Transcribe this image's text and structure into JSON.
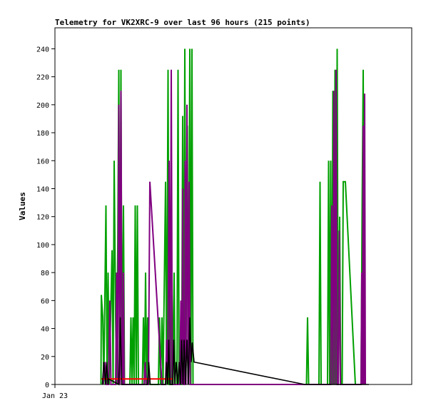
{
  "chart_data": {
    "type": "line",
    "title": "Telemetry for VK2XRC-9 over last 96 hours (215 points)",
    "xlabel": "",
    "ylabel": "Values",
    "ylim": [
      0,
      255
    ],
    "xlim": [
      0,
      100
    ],
    "x_tick_labels": [
      {
        "x": 0,
        "label": "Jan 23"
      }
    ],
    "y_ticks": [
      0,
      20,
      40,
      60,
      80,
      100,
      120,
      140,
      160,
      180,
      200,
      220,
      240
    ],
    "grid": false,
    "legend": "none",
    "series": [
      {
        "color": "#00a000",
        "points": [
          [
            12.9,
            0
          ],
          [
            13.0,
            64
          ],
          [
            13.4,
            48
          ],
          [
            13.7,
            0
          ],
          [
            14.0,
            64
          ],
          [
            14.3,
            128
          ],
          [
            14.6,
            0
          ],
          [
            14.9,
            80
          ],
          [
            15.2,
            0
          ],
          [
            16.0,
            96
          ],
          [
            16.3,
            0
          ],
          [
            16.6,
            160
          ],
          [
            17.0,
            48
          ],
          [
            17.3,
            0
          ],
          [
            17.6,
            96
          ],
          [
            17.9,
            225
          ],
          [
            18.2,
            0
          ],
          [
            18.5,
            225
          ],
          [
            18.8,
            0
          ],
          [
            19.2,
            128
          ],
          [
            19.5,
            0
          ],
          [
            21.0,
            0
          ],
          [
            21.3,
            48
          ],
          [
            21.6,
            0
          ],
          [
            21.9,
            48
          ],
          [
            22.2,
            0
          ],
          [
            22.5,
            128
          ],
          [
            22.8,
            0
          ],
          [
            23.1,
            128
          ],
          [
            23.4,
            0
          ],
          [
            24.5,
            0
          ],
          [
            24.8,
            48
          ],
          [
            25.1,
            0
          ],
          [
            25.4,
            80
          ],
          [
            25.7,
            0
          ],
          [
            26.0,
            48
          ],
          [
            26.3,
            0
          ],
          [
            29.0,
            0
          ],
          [
            29.3,
            48
          ],
          [
            29.6,
            0
          ],
          [
            30.0,
            48
          ],
          [
            30.3,
            0
          ],
          [
            31.0,
            145
          ],
          [
            31.3,
            0
          ],
          [
            31.7,
            225
          ],
          [
            32.0,
            0
          ],
          [
            32.5,
            0
          ],
          [
            32.8,
            64
          ],
          [
            33.1,
            0
          ],
          [
            33.4,
            80
          ],
          [
            33.7,
            0
          ],
          [
            34.2,
            0
          ],
          [
            34.5,
            225
          ],
          [
            34.8,
            0
          ],
          [
            35.5,
            0
          ],
          [
            35.8,
            192
          ],
          [
            36.1,
            0
          ],
          [
            36.4,
            240
          ],
          [
            36.7,
            0
          ],
          [
            37.1,
            185
          ],
          [
            37.4,
            0
          ],
          [
            37.8,
            240
          ],
          [
            38.1,
            0
          ],
          [
            38.4,
            240
          ],
          [
            38.7,
            0
          ],
          [
            39.5,
            0
          ],
          [
            39.8,
            0
          ],
          [
            70.5,
            0
          ],
          [
            70.8,
            48
          ],
          [
            71.1,
            0
          ],
          [
            71.4,
            0
          ],
          [
            74.0,
            0
          ],
          [
            74.3,
            145
          ],
          [
            74.6,
            0
          ],
          [
            76.4,
            0
          ],
          [
            76.7,
            160
          ],
          [
            77.0,
            0
          ],
          [
            77.3,
            160
          ],
          [
            77.6,
            0
          ],
          [
            77.9,
            210
          ],
          [
            78.2,
            0
          ],
          [
            78.5,
            225
          ],
          [
            78.8,
            0
          ],
          [
            79.1,
            240
          ],
          [
            79.4,
            0
          ],
          [
            79.8,
            120
          ],
          [
            80.1,
            0
          ],
          [
            80.5,
            0
          ],
          [
            80.8,
            145
          ],
          [
            81.4,
            145
          ],
          [
            84.2,
            0
          ],
          [
            85.8,
            0
          ],
          [
            86.1,
            128
          ],
          [
            86.4,
            225
          ],
          [
            86.7,
            0
          ]
        ]
      },
      {
        "color": "#800080",
        "points": [
          [
            13.5,
            0
          ],
          [
            14.0,
            16
          ],
          [
            14.4,
            0
          ],
          [
            15.0,
            0
          ],
          [
            15.4,
            60
          ],
          [
            15.7,
            0
          ],
          [
            17.0,
            0
          ],
          [
            17.3,
            80
          ],
          [
            17.6,
            0
          ],
          [
            17.9,
            200
          ],
          [
            18.2,
            0
          ],
          [
            18.5,
            210
          ],
          [
            18.8,
            0
          ],
          [
            19.1,
            0
          ],
          [
            19.2,
            80
          ],
          [
            19.4,
            0
          ],
          [
            25.0,
            0
          ],
          [
            25.3,
            16
          ],
          [
            25.6,
            0
          ],
          [
            26.2,
            0
          ],
          [
            26.6,
            145
          ],
          [
            27.0,
            128
          ],
          [
            30.0,
            0
          ],
          [
            31.0,
            0
          ],
          [
            31.3,
            32
          ],
          [
            31.6,
            0
          ],
          [
            32.0,
            160
          ],
          [
            32.3,
            0
          ],
          [
            32.6,
            225
          ],
          [
            32.9,
            0
          ],
          [
            35.0,
            0
          ],
          [
            35.3,
            60
          ],
          [
            35.6,
            0
          ],
          [
            35.8,
            140
          ],
          [
            36.1,
            0
          ],
          [
            36.4,
            0
          ],
          [
            36.5,
            160
          ],
          [
            36.7,
            0
          ],
          [
            37.0,
            200
          ],
          [
            37.3,
            0
          ],
          [
            37.6,
            145
          ],
          [
            37.9,
            0
          ],
          [
            38.2,
            0
          ],
          [
            38.6,
            0
          ],
          [
            77.3,
            0
          ],
          [
            77.6,
            128
          ],
          [
            77.9,
            0
          ],
          [
            78.2,
            210
          ],
          [
            78.5,
            0
          ],
          [
            78.8,
            225
          ],
          [
            79.1,
            0
          ],
          [
            79.4,
            0
          ],
          [
            79.7,
            110
          ],
          [
            80.0,
            0
          ],
          [
            85.8,
            0
          ],
          [
            86.0,
            80
          ],
          [
            86.2,
            0
          ],
          [
            86.4,
            185
          ],
          [
            86.6,
            0
          ],
          [
            86.8,
            208
          ],
          [
            87.0,
            0
          ]
        ]
      },
      {
        "color": "#ff0000",
        "points": [
          [
            13.0,
            4
          ],
          [
            33.0,
            4
          ]
        ]
      },
      {
        "color": "#000000",
        "points": [
          [
            13.3,
            0
          ],
          [
            13.7,
            16
          ],
          [
            14.2,
            0
          ],
          [
            14.5,
            16
          ],
          [
            14.9,
            0
          ],
          [
            15.0,
            4
          ],
          [
            17.9,
            0
          ],
          [
            18.3,
            48
          ],
          [
            18.7,
            0
          ],
          [
            19.0,
            0
          ],
          [
            26.0,
            0
          ],
          [
            26.3,
            16
          ],
          [
            26.7,
            0
          ],
          [
            27.0,
            0
          ],
          [
            31.0,
            0
          ],
          [
            31.3,
            16
          ],
          [
            31.6,
            0
          ],
          [
            31.9,
            32
          ],
          [
            32.2,
            0
          ],
          [
            33.0,
            0
          ],
          [
            33.3,
            32
          ],
          [
            33.6,
            0
          ],
          [
            34.0,
            16
          ],
          [
            34.4,
            0
          ],
          [
            34.8,
            16
          ],
          [
            35.2,
            0
          ],
          [
            35.5,
            32
          ],
          [
            35.9,
            0
          ],
          [
            36.2,
            32
          ],
          [
            36.6,
            0
          ],
          [
            37.0,
            32
          ],
          [
            37.4,
            0
          ],
          [
            37.8,
            48
          ],
          [
            38.2,
            16
          ],
          [
            38.5,
            30
          ],
          [
            39.0,
            16
          ],
          [
            70.0,
            0
          ],
          [
            77.5,
            0
          ],
          [
            78.0,
            0
          ],
          [
            86.0,
            0
          ],
          [
            86.3,
            0
          ],
          [
            86.8,
            0
          ],
          [
            88.0,
            0
          ]
        ]
      }
    ]
  }
}
